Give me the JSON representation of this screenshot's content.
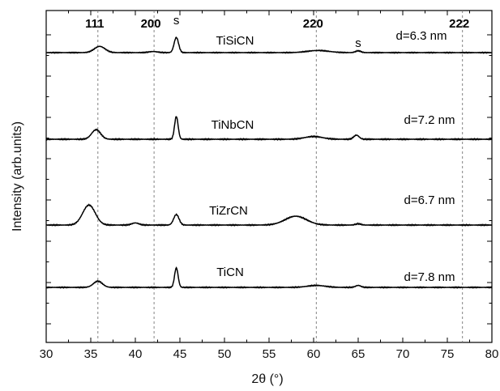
{
  "chart_data": {
    "type": "line",
    "xlabel": "2θ (°)",
    "ylabel": "Intensity (arb.units)",
    "xlim": [
      30,
      80
    ],
    "xticks": [
      30,
      35,
      40,
      45,
      50,
      55,
      60,
      65,
      70,
      75,
      80
    ],
    "grid": false,
    "reference_lines": [
      {
        "label": "111",
        "x": 35.8
      },
      {
        "label": "200",
        "x": 42.1
      },
      {
        "label": "220",
        "x": 60.3
      },
      {
        "label": "222",
        "x": 76.7
      }
    ],
    "substrate_marks": [
      {
        "label": "s",
        "x": 44.6
      },
      {
        "label": "s",
        "x": 65.0
      }
    ],
    "series": [
      {
        "name": "TiSiCN",
        "size_label": "d=6.3 nm",
        "peaks": [
          {
            "x": 36.0,
            "h": 0.35,
            "w": 0.6
          },
          {
            "x": 42.0,
            "h": 0.06,
            "w": 0.5
          },
          {
            "x": 44.6,
            "h": 0.85,
            "w": 0.25
          },
          {
            "x": 60.5,
            "h": 0.12,
            "w": 1.2
          },
          {
            "x": 65.0,
            "h": 0.1,
            "w": 0.3
          }
        ]
      },
      {
        "name": "TiNbCN",
        "size_label": "d=7.2 nm",
        "peaks": [
          {
            "x": 35.6,
            "h": 0.42,
            "w": 0.5
          },
          {
            "x": 44.6,
            "h": 1.0,
            "w": 0.2
          },
          {
            "x": 60.0,
            "h": 0.12,
            "w": 1.0
          },
          {
            "x": 64.8,
            "h": 0.18,
            "w": 0.3
          }
        ]
      },
      {
        "name": "TiZrCN",
        "size_label": "d=6.7 nm",
        "peaks": [
          {
            "x": 34.8,
            "h": 0.95,
            "w": 0.7
          },
          {
            "x": 40.0,
            "h": 0.1,
            "w": 0.4
          },
          {
            "x": 44.6,
            "h": 0.5,
            "w": 0.3
          },
          {
            "x": 58.0,
            "h": 0.42,
            "w": 1.2
          },
          {
            "x": 65.0,
            "h": 0.06,
            "w": 0.3
          }
        ]
      },
      {
        "name": "TiCN",
        "size_label": "d=7.8 nm",
        "peaks": [
          {
            "x": 35.8,
            "h": 0.32,
            "w": 0.5
          },
          {
            "x": 44.6,
            "h": 1.0,
            "w": 0.2
          },
          {
            "x": 60.3,
            "h": 0.1,
            "w": 1.0
          },
          {
            "x": 65.0,
            "h": 0.1,
            "w": 0.3
          }
        ]
      }
    ]
  }
}
